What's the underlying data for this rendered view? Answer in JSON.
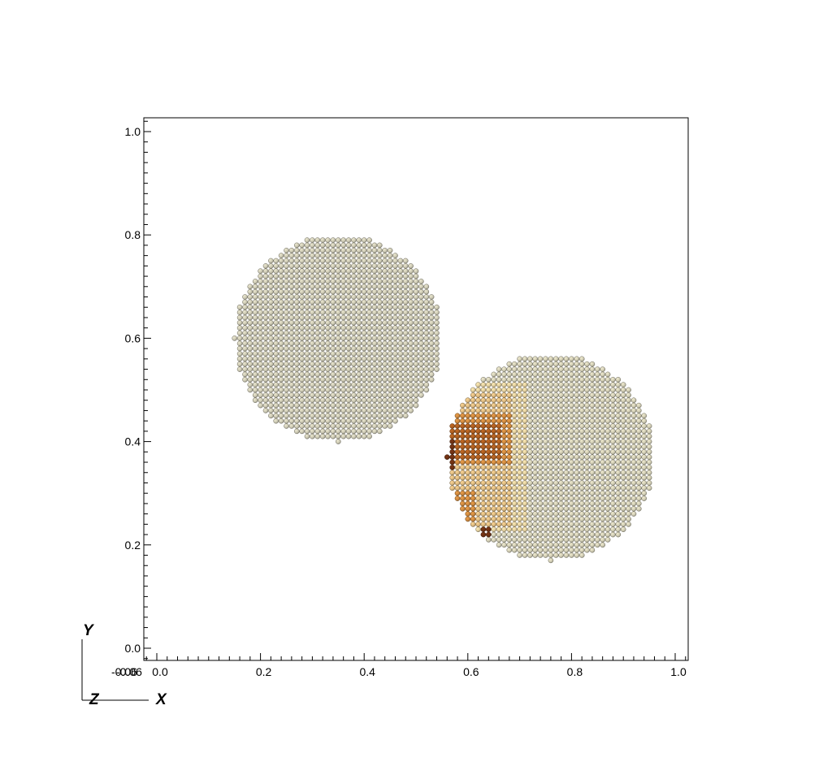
{
  "chart_data": {
    "type": "scatter",
    "xlabel": "",
    "ylabel": "",
    "xlim": [
      -0.025,
      1.025
    ],
    "ylim": [
      -0.025,
      1.025
    ],
    "x_ticks": [
      0.0,
      0.2,
      0.4,
      0.6,
      0.8,
      1.0
    ],
    "x_tick_labels": [
      "0.0",
      "0.2",
      "0.4",
      "0.6",
      "0.8",
      "1.0"
    ],
    "x_origin_labels": [
      "-0.06",
      "-0.06"
    ],
    "y_ticks": [
      0.0,
      0.2,
      0.4,
      0.6,
      0.8,
      1.0
    ],
    "y_tick_labels": [
      "0.0",
      "0.2",
      "0.4",
      "0.6",
      "0.8",
      "1.0"
    ],
    "grid": false,
    "axis_triad": {
      "labels": [
        "Y",
        "Z",
        "X"
      ]
    },
    "particle_spacing": 0.01,
    "particle_radius": 0.0048,
    "bodies": [
      {
        "center": [
          0.35,
          0.6
        ],
        "radius": 0.2,
        "color": "#c8c5b0"
      },
      {
        "center": [
          0.76,
          0.37
        ],
        "radius": 0.2,
        "color": "#ccc8b0"
      }
    ],
    "damage_colors": {
      "light": "#dcc99a",
      "tan": "#d7b57d",
      "orange": "#c9863e",
      "dark_orange": "#a85b1f",
      "dark_brown": "#6a2f12"
    },
    "damage_regions": [
      {
        "level": "light",
        "x": [
          0.555,
          0.72
        ],
        "y": [
          0.23,
          0.52
        ]
      },
      {
        "level": "tan",
        "x": [
          0.555,
          0.69
        ],
        "y": [
          0.24,
          0.5
        ]
      },
      {
        "level": "orange",
        "x": [
          0.565,
          0.685
        ],
        "y": [
          0.36,
          0.46
        ]
      },
      {
        "level": "orange",
        "x": [
          0.565,
          0.62
        ],
        "y": [
          0.25,
          0.31
        ]
      },
      {
        "level": "dark_orange",
        "x": [
          0.565,
          0.665
        ],
        "y": [
          0.37,
          0.44
        ]
      },
      {
        "level": "dark_brown",
        "x": [
          0.555,
          0.58
        ],
        "y": [
          0.345,
          0.405
        ]
      },
      {
        "level": "dark_brown",
        "x": [
          0.625,
          0.645
        ],
        "y": [
          0.215,
          0.235
        ]
      }
    ]
  }
}
